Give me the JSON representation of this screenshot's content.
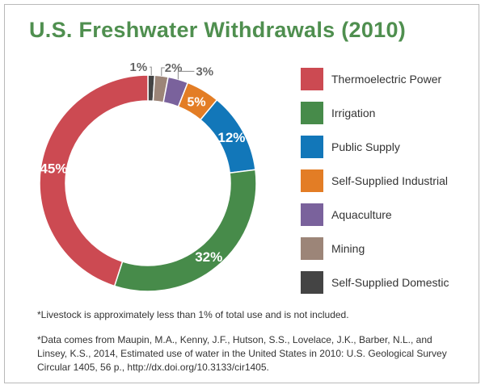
{
  "title": "U.S. Freshwater Withdrawals (2010)",
  "chart_data": {
    "type": "pie",
    "variant": "donut",
    "title": "U.S. Freshwater Withdrawals (2010)",
    "unit": "%",
    "slices": [
      {
        "name": "Thermoelectric Power",
        "value": 45,
        "label": "45%",
        "color": "#cc4a52"
      },
      {
        "name": "Irrigation",
        "value": 32,
        "label": "32%",
        "color": "#478b4a"
      },
      {
        "name": "Public Supply",
        "value": 12,
        "label": "12%",
        "color": "#1277b9"
      },
      {
        "name": "Self-Supplied Industrial",
        "value": 5,
        "label": "5%",
        "color": "#e37d25"
      },
      {
        "name": "Aquaculture",
        "value": 3,
        "label": "3%",
        "color": "#7a629c"
      },
      {
        "name": "Mining",
        "value": 2,
        "label": "2%",
        "color": "#9c8578"
      },
      {
        "name": "Self-Supplied Domestic",
        "value": 1,
        "label": "1%",
        "color": "#444444"
      }
    ],
    "legend_position": "right"
  },
  "notes": {
    "livestock": "*Livestock is approximately less than 1% of total use and is not included.",
    "source": "*Data comes from Maupin, M.A., Kenny, J.F., Hutson, S.S., Lovelace, J.K., Barber, N.L., and Linsey, K.S., 2014, Estimated use of water in the United States in 2010: U.S. Geological Survey Circular 1405, 56 p., http://dx.doi.org/10.3133/cir1405."
  }
}
